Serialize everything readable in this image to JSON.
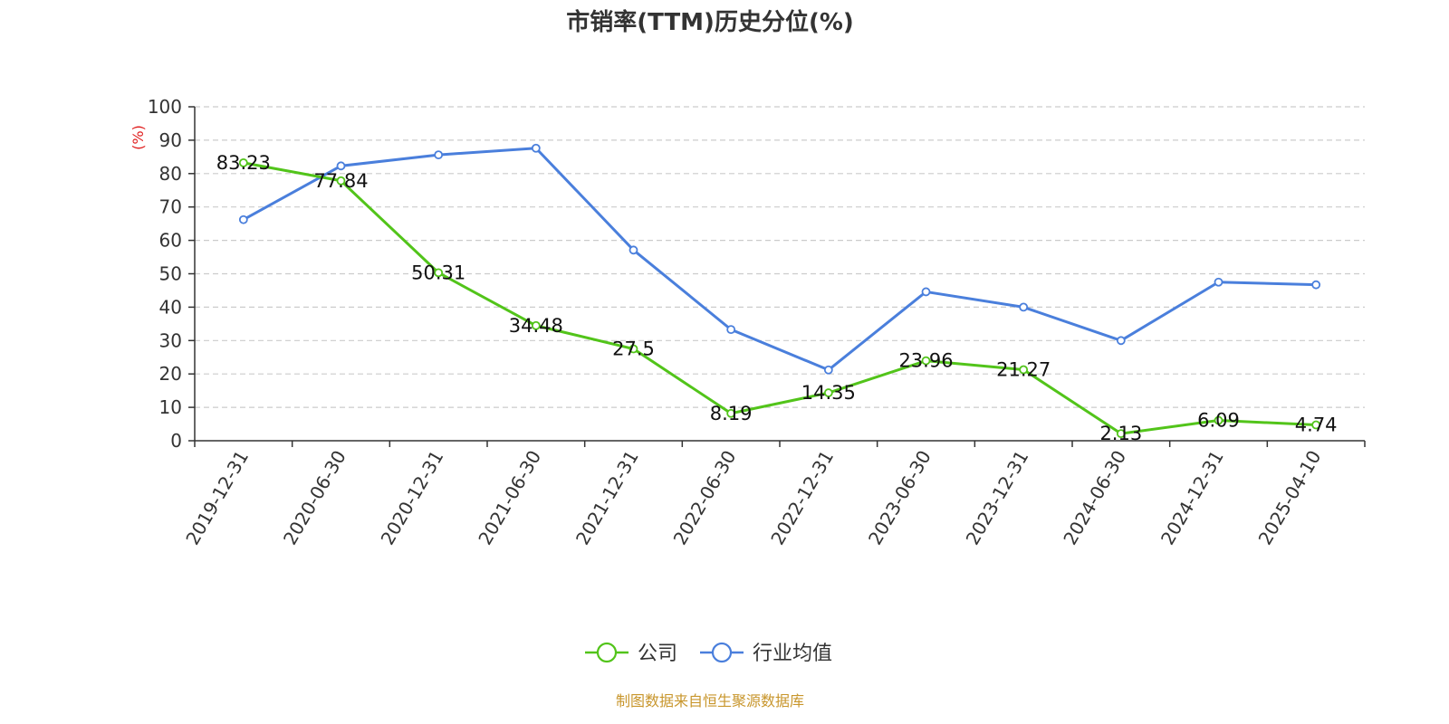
{
  "chart_data": {
    "type": "line",
    "title": "市销率(TTM)历史分位(%)",
    "ylabel": "(%)",
    "ylim": [
      0,
      100
    ],
    "yticks": [
      0,
      10,
      20,
      30,
      40,
      50,
      60,
      70,
      80,
      90,
      100
    ],
    "categories": [
      "2019-12-31",
      "2020-06-30",
      "2020-12-31",
      "2021-06-30",
      "2021-12-31",
      "2022-06-30",
      "2022-12-31",
      "2023-06-30",
      "2023-12-31",
      "2024-06-30",
      "2024-12-31",
      "2025-04-10"
    ],
    "series": [
      {
        "name": "公司",
        "color": "#52c41a",
        "values": [
          83.23,
          77.84,
          50.31,
          34.48,
          27.5,
          8.19,
          14.35,
          23.96,
          21.27,
          2.13,
          6.09,
          4.74
        ],
        "labels": [
          "83.23",
          "77.84",
          "50.31",
          "34.48",
          "27.5",
          "8.19",
          "14.35",
          "23.96",
          "21.27",
          "2.13",
          "6.09",
          "4.74"
        ]
      },
      {
        "name": "行业均值",
        "color": "#4a7fdc",
        "values": [
          66.2,
          82.3,
          85.6,
          87.6,
          57.1,
          33.3,
          21.2,
          44.6,
          40.0,
          30.0,
          47.5,
          46.7
        ]
      }
    ],
    "grid": "horizontal-dashed",
    "legend_position": "bottom-center"
  },
  "colors": {
    "ylabel": "#e02020",
    "source": "#c8962c",
    "axis": "#333333",
    "grid": "#cccccc"
  },
  "footer": {
    "source": "制图数据来自恒生聚源数据库"
  }
}
